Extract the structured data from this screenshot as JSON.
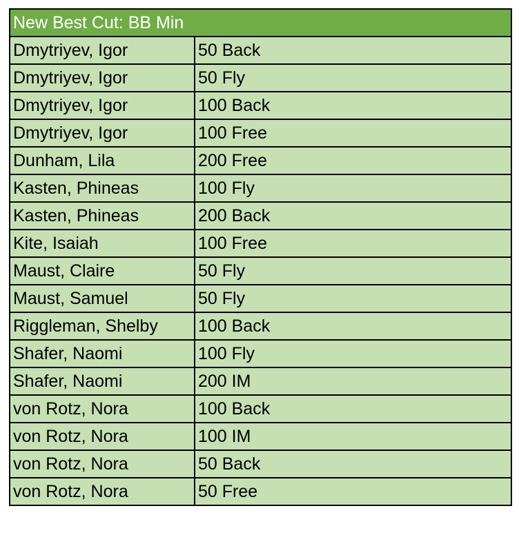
{
  "header": {
    "title": "New Best Cut: BB Min"
  },
  "table": {
    "rows": [
      [
        "Dmytriyev, Igor",
        "50 Back"
      ],
      [
        "Dmytriyev, Igor",
        "50 Fly"
      ],
      [
        "Dmytriyev, Igor",
        "100 Back"
      ],
      [
        "Dmytriyev, Igor",
        "100 Free"
      ],
      [
        "Dunham, Lila",
        "200 Free"
      ],
      [
        "Kasten, Phineas",
        "100 Fly"
      ],
      [
        "Kasten, Phineas",
        "200 Back"
      ],
      [
        "Kite, Isaiah",
        "100 Free"
      ],
      [
        "Maust, Claire",
        "50 Fly"
      ],
      [
        "Maust, Samuel",
        "50 Fly"
      ],
      [
        "Riggleman, Shelby",
        "100 Back"
      ],
      [
        "Shafer, Naomi",
        "100 Fly"
      ],
      [
        "Shafer, Naomi",
        "200 IM"
      ],
      [
        "von Rotz, Nora",
        "100 Back"
      ],
      [
        "von Rotz, Nora",
        "100 IM"
      ],
      [
        "von Rotz, Nora",
        "50 Back"
      ],
      [
        "von Rotz, Nora",
        "50 Free"
      ]
    ]
  }
}
